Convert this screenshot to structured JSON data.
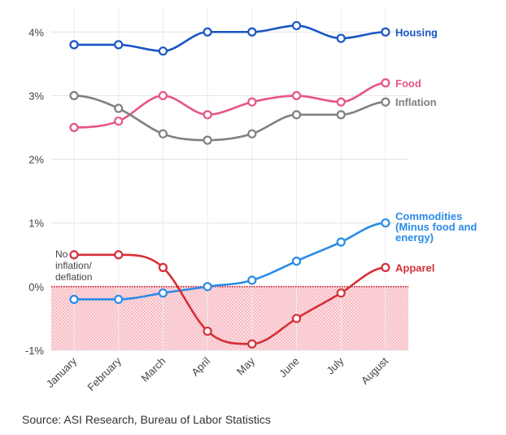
{
  "chart_data": {
    "type": "line",
    "categories": [
      "January",
      "February",
      "March",
      "April",
      "May",
      "June",
      "July",
      "August"
    ],
    "ylim": [
      -1,
      4.4
    ],
    "yticks": [
      -1,
      0,
      1,
      2,
      3,
      4
    ],
    "ytick_labels": [
      "-1%",
      "0%",
      "1%",
      "2%",
      "3%",
      "4%"
    ],
    "grid": true,
    "legend_placement": "direct labels at right end of lines",
    "series": [
      {
        "name": "Housing",
        "color": "#1a56c4",
        "values": [
          3.8,
          3.8,
          3.7,
          4.0,
          4.0,
          4.1,
          3.9,
          4.0
        ]
      },
      {
        "name": "Food",
        "color": "#e8548a",
        "values": [
          2.5,
          2.6,
          3.0,
          2.7,
          2.9,
          3.0,
          2.9,
          3.2
        ]
      },
      {
        "name": "Inflation",
        "color": "#808080",
        "values": [
          3.0,
          2.8,
          2.4,
          2.3,
          2.4,
          2.7,
          2.7,
          2.9
        ]
      },
      {
        "name": "Commodities (Minus food and energy)",
        "label_lines": [
          "Commodities",
          "(Minus food and",
          "energy)"
        ],
        "color": "#2a8ce8",
        "values": [
          -0.2,
          -0.2,
          -0.1,
          0.0,
          0.1,
          0.4,
          0.7,
          1.0
        ]
      },
      {
        "name": "Apparel",
        "color": "#d62f37",
        "values": [
          0.5,
          0.5,
          0.3,
          -0.7,
          -0.9,
          -0.5,
          -0.1,
          0.3
        ]
      }
    ],
    "annotation": {
      "lines": [
        "No",
        "inflation/",
        "deflation"
      ]
    }
  },
  "source": "Source: ASI Research, Bureau of Labor Statistics"
}
